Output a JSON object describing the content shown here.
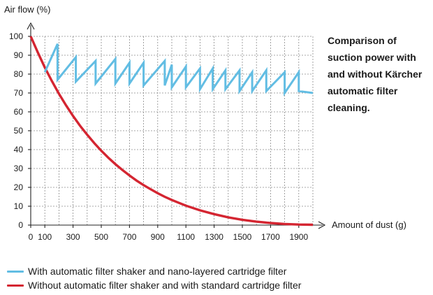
{
  "chart_data": {
    "type": "line",
    "ylabel": "Air flow (%)",
    "xlabel": "Amount of dust (g)",
    "xlim": [
      0,
      2000
    ],
    "ylim": [
      0,
      100
    ],
    "grid": true,
    "x_ticks": [
      0,
      100,
      300,
      500,
      700,
      900,
      1100,
      1300,
      1500,
      1700,
      1900
    ],
    "x_gridlines": [
      0,
      100,
      200,
      300,
      400,
      500,
      600,
      700,
      800,
      900,
      1000,
      1100,
      1200,
      1300,
      1400,
      1500,
      1600,
      1700,
      1800,
      1900,
      2000
    ],
    "y_ticks": [
      0,
      10,
      20,
      30,
      40,
      50,
      60,
      70,
      80,
      90,
      100
    ],
    "annotation": "Comparison of suction power with and without Kärcher automatic filter cleaning.",
    "legend_position": "bottom-left",
    "series": [
      {
        "name": "With automatic filter shaker and nano-layered cartridge filter",
        "color": "#62bde3",
        "x": [
          100,
          190,
          190,
          320,
          320,
          460,
          460,
          600,
          600,
          700,
          700,
          800,
          800,
          950,
          950,
          1000,
          1000,
          1100,
          1100,
          1200,
          1200,
          1290,
          1290,
          1380,
          1380,
          1480,
          1480,
          1570,
          1570,
          1670,
          1670,
          1800,
          1800,
          1900,
          1900,
          2000
        ],
        "values": [
          81,
          96,
          77,
          89,
          76,
          87,
          75,
          88,
          75,
          86,
          75,
          86,
          74,
          87,
          74,
          85,
          73,
          84,
          73,
          83,
          72,
          83,
          72,
          82,
          72,
          82,
          71,
          81,
          71,
          82,
          71,
          81,
          70,
          81,
          71,
          70
        ]
      },
      {
        "name": "Without automatic filter shaker and with standard cartridge filter",
        "color": "#d42531",
        "x": [
          0,
          50,
          100,
          150,
          200,
          250,
          300,
          350,
          400,
          450,
          500,
          550,
          600,
          650,
          700,
          750,
          800,
          850,
          900,
          950,
          1000,
          1100,
          1200,
          1300,
          1400,
          1500,
          1600,
          1700,
          1800,
          1900,
          2000
        ],
        "values": [
          100,
          91.5,
          83.5,
          76.3,
          69.6,
          63.5,
          57.8,
          52.6,
          47.9,
          43.5,
          39.4,
          35.7,
          32.3,
          29.2,
          26.3,
          23.6,
          21.2,
          19.0,
          16.9,
          15.0,
          13.3,
          10.3,
          7.8,
          5.8,
          4.1,
          2.8,
          1.8,
          1.1,
          0.6,
          0.3,
          0.2
        ]
      }
    ]
  }
}
